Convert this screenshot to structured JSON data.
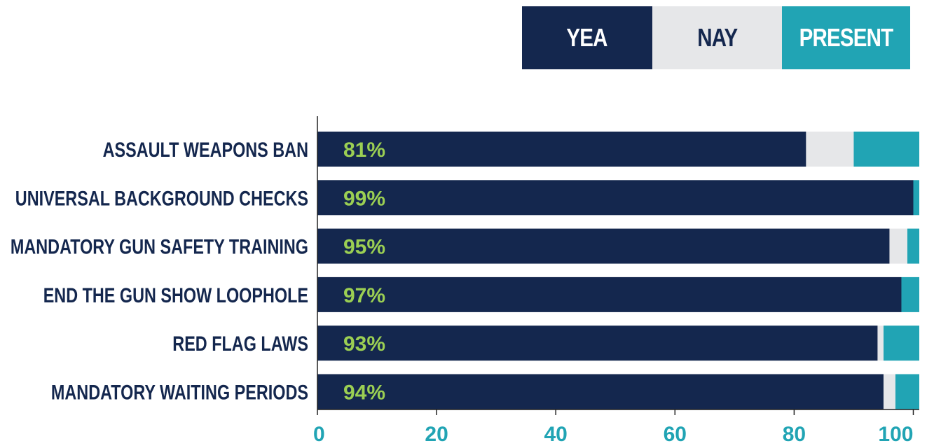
{
  "legend": {
    "yea": "YEA",
    "nay": "NAY",
    "present": "PRESENT"
  },
  "colors": {
    "yea": "#14274e",
    "nay": "#e6e7e9",
    "present": "#21a4b4",
    "data_label": "#9bcf53",
    "axis": "#222222"
  },
  "chart_data": {
    "type": "bar",
    "orientation": "horizontal",
    "stacked": true,
    "categories": [
      "ASSAULT WEAPONS BAN",
      "UNIVERSAL BACKGROUND CHECKS",
      "MANDATORY GUN SAFETY TRAINING",
      "END THE GUN SHOW LOOPHOLE",
      "RED FLAG LAWS",
      "MANDATORY WAITING PERIODS"
    ],
    "series": [
      {
        "name": "YEA",
        "values": [
          82,
          100,
          96,
          98,
          94,
          95
        ]
      },
      {
        "name": "NAY",
        "values": [
          8,
          0,
          3,
          0,
          1,
          2
        ]
      },
      {
        "name": "PRESENT",
        "values": [
          11,
          1,
          2,
          3,
          6,
          4
        ]
      }
    ],
    "data_labels": [
      "81%",
      "99%",
      "95%",
      "97%",
      "93%",
      "94%"
    ],
    "xlim": [
      0,
      101
    ],
    "xticks": [
      "0",
      "20",
      "40",
      "60",
      "80",
      "100"
    ],
    "legend_position": "top-right",
    "grid": false
  }
}
